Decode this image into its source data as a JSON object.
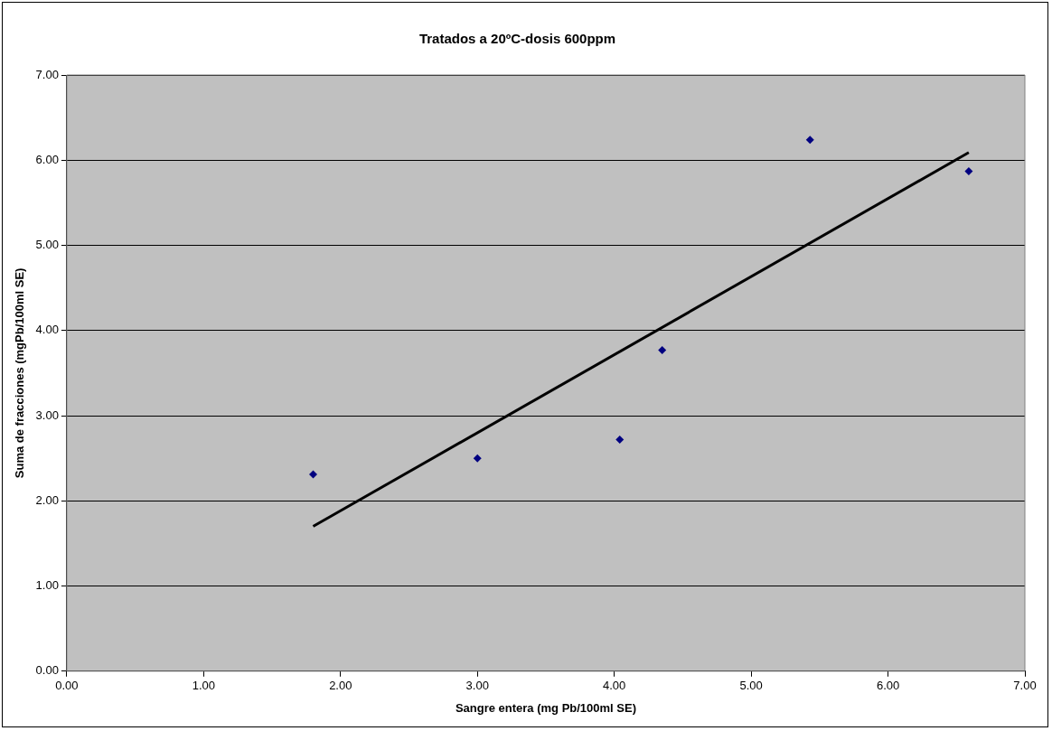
{
  "chart_data": {
    "type": "scatter",
    "title": "Tratados a 20ºC-dosis 600ppm",
    "xlabel": "Sangre entera (mg Pb/100ml SE)",
    "ylabel": "Suma de fracciones (mgPb/100ml SE)",
    "xlim": [
      0,
      7
    ],
    "ylim": [
      0,
      7
    ],
    "xticks": [
      {
        "value": 0,
        "label": "0.00"
      },
      {
        "value": 1,
        "label": "1.00"
      },
      {
        "value": 2,
        "label": "2.00"
      },
      {
        "value": 3,
        "label": "3.00"
      },
      {
        "value": 4,
        "label": "4.00"
      },
      {
        "value": 5,
        "label": "5.00"
      },
      {
        "value": 6,
        "label": "6.00"
      },
      {
        "value": 7,
        "label": "7.00"
      }
    ],
    "yticks": [
      {
        "value": 0,
        "label": "0.00"
      },
      {
        "value": 1,
        "label": "1.00"
      },
      {
        "value": 2,
        "label": "2.00"
      },
      {
        "value": 3,
        "label": "3.00"
      },
      {
        "value": 4,
        "label": "4.00"
      },
      {
        "value": 5,
        "label": "5.00"
      },
      {
        "value": 6,
        "label": "6.00"
      },
      {
        "value": 7,
        "label": "7.00"
      }
    ],
    "grid": "y",
    "marker": "diamond",
    "legend": false,
    "series": [
      {
        "color": "#000080",
        "x": [
          1.8,
          3.0,
          4.04,
          4.35,
          5.43,
          6.59
        ],
        "values": [
          2.31,
          2.5,
          2.72,
          3.77,
          6.24,
          5.87
        ]
      },
      {
        "type": "line",
        "marker": "none",
        "color": "#000000",
        "x": [
          1.8,
          6.59
        ],
        "values": [
          1.7,
          6.09
        ]
      }
    ]
  }
}
